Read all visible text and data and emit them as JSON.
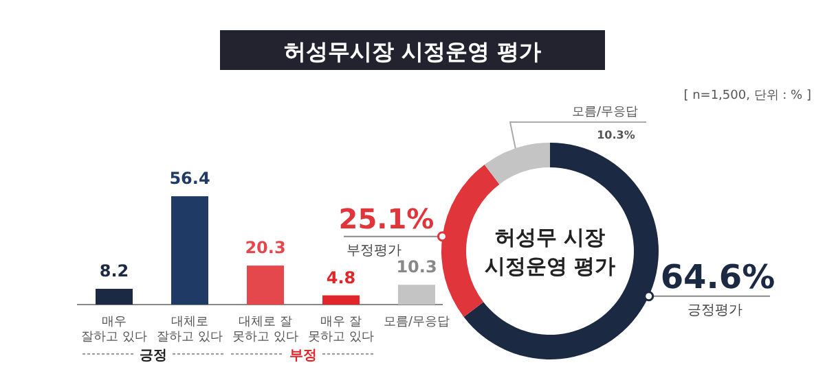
{
  "chart_data": [
    {
      "type": "bar",
      "title": "허성무시장 시정운영 평가",
      "categories": [
        "매우\n잘하고 있다",
        "대체로\n잘하고 있다",
        "대체로 잘\n못하고 있다",
        "매우 잘\n못하고 있다",
        "모름/무응답"
      ],
      "values": [
        8.2,
        56.4,
        20.3,
        4.8,
        10.3
      ],
      "colors": [
        "#1c2942",
        "#1f3a64",
        "#e5484c",
        "#e0262b",
        "#c4c4c4"
      ],
      "data_labels": true,
      "annotations": [
        "[ n=1,500, 단위 : % ]",
        "긍정",
        "부정"
      ]
    },
    {
      "type": "donut",
      "title": "허성무 시장\n시정운영 평가",
      "categories": [
        "긍정평가",
        "부정평가",
        "모름/무응답"
      ],
      "values": [
        64.6,
        25.1,
        10.3
      ],
      "colors": [
        "#1c2942",
        "#e0353a",
        "#c4c4c4"
      ],
      "value_labels": [
        "64.6%",
        "25.1%",
        "10.3%"
      ]
    }
  ]
}
